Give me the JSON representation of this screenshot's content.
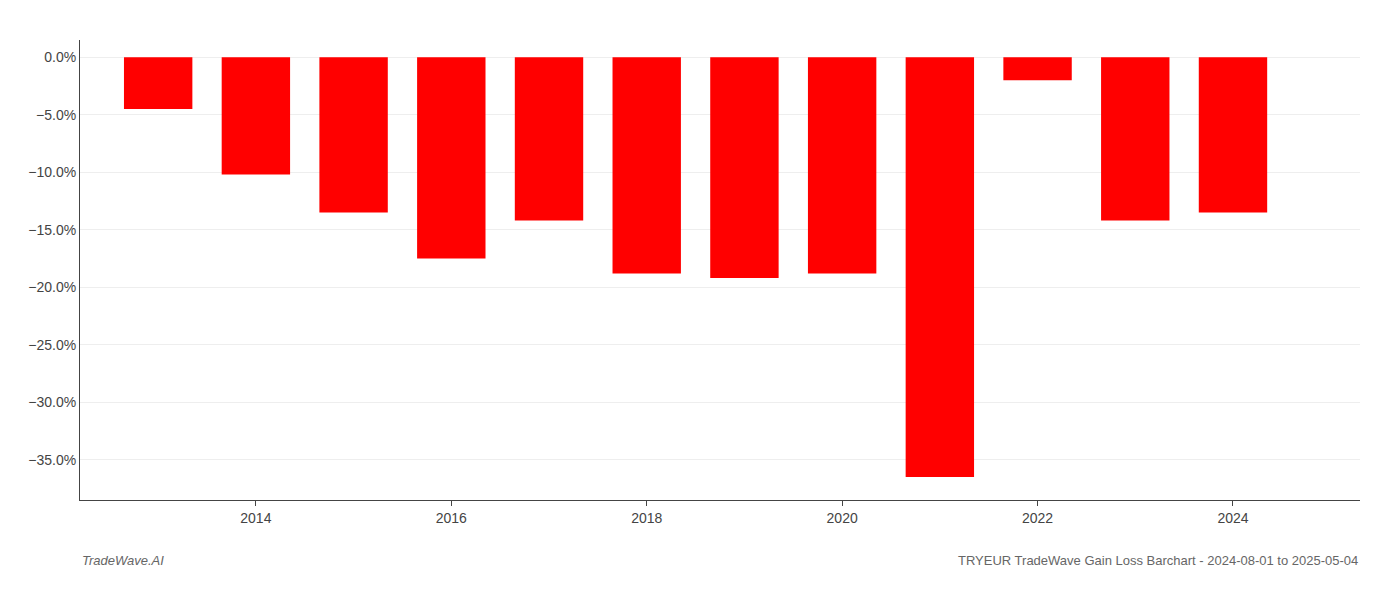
{
  "chart_data": {
    "type": "bar",
    "x": [
      2013,
      2014,
      2015,
      2016,
      2017,
      2018,
      2019,
      2020,
      2021,
      2022,
      2023,
      2024
    ],
    "values": [
      -4.5,
      -10.2,
      -13.5,
      -17.5,
      -14.2,
      -18.8,
      -19.2,
      -18.8,
      -36.5,
      -2.0,
      -14.2,
      -13.5
    ],
    "color": "#ff0000",
    "xlim": [
      2012.2,
      2025.3
    ],
    "xticks": [
      2014,
      2016,
      2018,
      2020,
      2022,
      2024
    ],
    "ylim": [
      -38.5,
      1.5
    ],
    "yticks": [
      {
        "value": 0.0,
        "label": "0.0%"
      },
      {
        "value": -5.0,
        "label": "−5.0%"
      },
      {
        "value": -10.0,
        "label": "−10.0%"
      },
      {
        "value": -15.0,
        "label": "−15.0%"
      },
      {
        "value": -20.0,
        "label": "−20.0%"
      },
      {
        "value": -25.0,
        "label": "−25.0%"
      },
      {
        "value": -30.0,
        "label": "−30.0%"
      },
      {
        "value": -35.0,
        "label": "−35.0%"
      }
    ],
    "grid": true,
    "annotations": [
      "TradeWave.AI",
      "TRYEUR TradeWave Gain Loss Barchart - 2024-08-01 to 2025-05-04"
    ]
  }
}
